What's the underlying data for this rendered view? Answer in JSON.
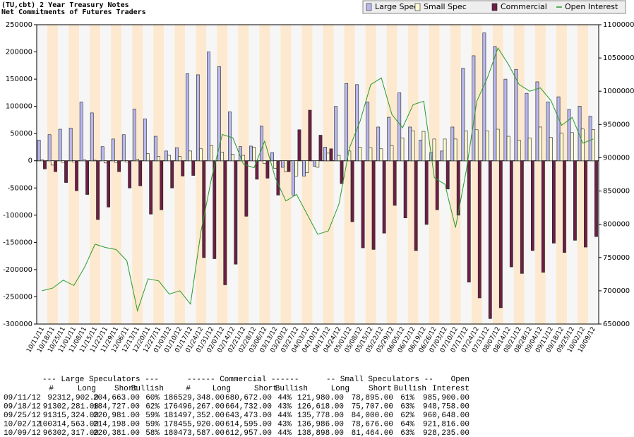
{
  "chart_data": {
    "type": "cot",
    "title": "(TU,cbt) 2 Year Treasury Notes",
    "subtitle": "Net Commitments of Futures Traders",
    "categories": [
      "10/11/11",
      "10/18/11",
      "10/25/11",
      "11/01/11",
      "11/08/11",
      "11/15/11",
      "11/22/11",
      "11/29/11",
      "12/06/11",
      "12/13/11",
      "12/20/11",
      "12/27/11",
      "01/03/12",
      "01/10/12",
      "01/17/12",
      "01/24/12",
      "01/31/12",
      "02/07/12",
      "02/14/12",
      "02/21/12",
      "02/28/12",
      "03/06/12",
      "03/13/12",
      "03/20/12",
      "03/27/12",
      "04/03/12",
      "04/10/12",
      "04/17/12",
      "04/24/12",
      "05/01/12",
      "05/08/12",
      "05/15/12",
      "05/22/12",
      "05/29/12",
      "06/05/12",
      "06/12/12",
      "06/19/12",
      "06/26/12",
      "07/03/12",
      "07/10/12",
      "07/17/12",
      "07/24/12",
      "07/31/12",
      "08/07/12",
      "08/14/12",
      "08/21/12",
      "08/28/12",
      "09/04/12",
      "09/11/12",
      "09/18/12",
      "09/25/12",
      "10/02/12",
      "10/09/12"
    ],
    "series": [
      {
        "name": "Large Spec",
        "color": "#b8b8f0",
        "values": [
          38000,
          48000,
          58000,
          60000,
          108000,
          88000,
          26000,
          40000,
          48000,
          95000,
          77000,
          45000,
          18000,
          24000,
          160000,
          158000,
          200000,
          173000,
          90000,
          26000,
          27000,
          64000,
          15000,
          -12000,
          -63000,
          -28000,
          -10000,
          25000,
          100000,
          142000,
          140000,
          108000,
          62000,
          80000,
          125000,
          62000,
          38000,
          15000,
          18000,
          62000,
          170000,
          193000,
          235000,
          210000,
          150000,
          168000,
          124000,
          145000,
          108239,
          117554,
          94343,
          100365,
          81936
        ]
      },
      {
        "name": "Small Spec",
        "color": "#fffad0",
        "values": [
          2000,
          -8000,
          -3000,
          -2000,
          2000,
          1000,
          -4000,
          -3000,
          -2000,
          3000,
          13000,
          8000,
          10000,
          8000,
          18000,
          22000,
          28000,
          16000,
          12000,
          10000,
          25000,
          -5000,
          -14000,
          -20000,
          -28000,
          -22000,
          -12000,
          14000,
          10000,
          18000,
          25000,
          24000,
          22000,
          28000,
          42000,
          55000,
          54000,
          40000,
          40000,
          40000,
          55000,
          57000,
          55000,
          58000,
          45000,
          38000,
          42000,
          62000,
          43085,
          50911,
          51778,
          58310,
          57434
        ]
      },
      {
        "name": "Commercial",
        "color": "#6b1f45",
        "values": [
          -15000,
          -20000,
          -40000,
          -55000,
          -62000,
          -108000,
          -85000,
          -20000,
          -50000,
          -46000,
          -98000,
          -90000,
          -50000,
          -28000,
          -27000,
          -178000,
          -180000,
          -228000,
          -190000,
          -102000,
          -34000,
          -32000,
          -63000,
          -20000,
          57000,
          93000,
          47000,
          22000,
          -42000,
          -112000,
          -160000,
          -163000,
          -133000,
          -82000,
          -105000,
          -165000,
          -117000,
          -90000,
          -52000,
          -100000,
          -223000,
          -252000,
          -290000,
          -270000,
          -195000,
          -207000,
          -165000,
          -205000,
          -151324,
          -168465,
          -146121,
          -158675,
          -139370
        ]
      },
      {
        "name": "Open Interest",
        "color": "#2a9a2a",
        "axis": "y2",
        "values": [
          700000,
          704000,
          716000,
          708000,
          735000,
          770000,
          765000,
          762000,
          745000,
          670000,
          718000,
          715000,
          695000,
          700000,
          680000,
          790000,
          870000,
          935000,
          930000,
          890000,
          885000,
          925000,
          870000,
          835000,
          845000,
          815000,
          785000,
          790000,
          830000,
          915000,
          955000,
          1010000,
          1020000,
          965000,
          945000,
          980000,
          985000,
          870000,
          860000,
          795000,
          880000,
          985000,
          1020000,
          1065000,
          1040000,
          1010000,
          1000000,
          1005000,
          985900,
          948758,
          960648,
          921816,
          928235
        ]
      }
    ],
    "ylim": [
      -300000,
      250000
    ],
    "yticks": [
      250000,
      200000,
      150000,
      100000,
      50000,
      0,
      -50000,
      -100000,
      -150000,
      -200000,
      -250000,
      -300000
    ],
    "y2lim": [
      650000,
      1100000
    ],
    "y2ticks": [
      1100000,
      1050000,
      1000000,
      950000,
      900000,
      850000,
      800000,
      750000,
      700000,
      650000
    ],
    "band_colors": [
      "#f6f6f6",
      "#fde9cf"
    ],
    "legend": "top-right"
  },
  "table": {
    "header": [
      "--- Large Speculators ---",
      "------ Commercial ------",
      "-- Small Speculators --",
      "Open"
    ],
    "columns": [
      "#",
      "Long",
      "Short",
      "Bullish",
      "#",
      "Long",
      "Short",
      "Bullish",
      "Long",
      "Short",
      "Bullish",
      "Interest"
    ],
    "rows": [
      [
        "09/11/12",
        "92312,902.0",
        "204,663.00",
        "60%",
        "186529,348.00",
        "680,672.00",
        "44%",
        "121,980.00",
        "78,895.00",
        "61%",
        "985,900.00"
      ],
      [
        "09/18/12",
        "91302,281.00",
        "184,727.00",
        "62%",
        "176496,267.00",
        "664,732.00",
        "43%",
        "126,618.00",
        "75,707.00",
        "63%",
        "948,758.00"
      ],
      [
        "09/25/12",
        "91315,324.00",
        "220,981.00",
        "59%",
        "181497,352.00",
        "643,473.00",
        "44%",
        "135,778.00",
        "84,000.00",
        "62%",
        "960,648.00"
      ],
      [
        "10/02/12",
        "100314,563.00",
        "214,198.00",
        "59%",
        "178455,920.00",
        "614,595.00",
        "43%",
        "136,986.00",
        "78,676.00",
        "64%",
        "921,816.00"
      ],
      [
        "10/09/12",
        "96302,317.00",
        "220,381.00",
        "58%",
        "180473,587.00",
        "612,957.00",
        "44%",
        "138,898.00",
        "81,464.00",
        "63%",
        "928,235.00"
      ]
    ]
  }
}
